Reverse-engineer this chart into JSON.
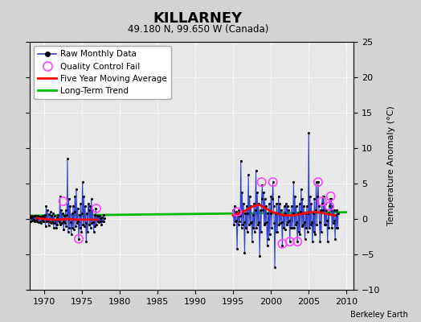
{
  "title": "KILLARNEY",
  "subtitle": "49.180 N, 99.650 W (Canada)",
  "ylabel": "Temperature Anomaly (°C)",
  "credit": "Berkeley Earth",
  "xlim": [
    1968,
    2011
  ],
  "ylim": [
    -10,
    25
  ],
  "yticks": [
    -10,
    -5,
    0,
    5,
    10,
    15,
    20,
    25
  ],
  "xticks": [
    1970,
    1975,
    1980,
    1985,
    1990,
    1995,
    2000,
    2005,
    2010
  ],
  "bg_color": "#d3d3d3",
  "plot_bg_color": "#e8e8e8",
  "grid_color": "#ffffff",
  "raw_color": "#3344cc",
  "raw_dot_color": "#000000",
  "ma_color": "#ff0000",
  "trend_color": "#00bb00",
  "qc_color": "#ff44ff",
  "raw_monthly_data": [
    [
      1968.04,
      0.2
    ],
    [
      1968.12,
      -0.3
    ],
    [
      1968.21,
      0.5
    ],
    [
      1968.29,
      0.1
    ],
    [
      1968.38,
      -0.2
    ],
    [
      1968.46,
      0.3
    ],
    [
      1968.54,
      -0.1
    ],
    [
      1968.63,
      0.4
    ],
    [
      1968.71,
      -0.3
    ],
    [
      1968.79,
      0.5
    ],
    [
      1968.88,
      -0.2
    ],
    [
      1968.96,
      0.1
    ],
    [
      1969.04,
      -0.3
    ],
    [
      1969.12,
      0.4
    ],
    [
      1969.21,
      -0.5
    ],
    [
      1969.29,
      0.2
    ],
    [
      1969.38,
      -0.4
    ],
    [
      1969.46,
      0.3
    ],
    [
      1969.54,
      -0.6
    ],
    [
      1969.63,
      0.2
    ],
    [
      1969.71,
      -0.2
    ],
    [
      1969.79,
      0.5
    ],
    [
      1969.88,
      -0.3
    ],
    [
      1969.96,
      0.2
    ],
    [
      1970.04,
      0.6
    ],
    [
      1970.12,
      -1.0
    ],
    [
      1970.21,
      1.8
    ],
    [
      1970.29,
      -0.3
    ],
    [
      1970.38,
      1.2
    ],
    [
      1970.46,
      -0.2
    ],
    [
      1970.54,
      -0.9
    ],
    [
      1970.63,
      0.7
    ],
    [
      1970.71,
      -0.5
    ],
    [
      1970.79,
      1.0
    ],
    [
      1970.88,
      -0.6
    ],
    [
      1970.96,
      0.4
    ],
    [
      1971.04,
      -0.4
    ],
    [
      1971.12,
      0.8
    ],
    [
      1971.21,
      -1.2
    ],
    [
      1971.29,
      0.4
    ],
    [
      1971.38,
      -0.6
    ],
    [
      1971.46,
      -0.1
    ],
    [
      1971.54,
      -1.3
    ],
    [
      1971.63,
      0.2
    ],
    [
      1971.71,
      -0.8
    ],
    [
      1971.79,
      0.6
    ],
    [
      1971.88,
      -0.2
    ],
    [
      1971.96,
      -0.4
    ],
    [
      1972.04,
      3.2
    ],
    [
      1972.12,
      -0.8
    ],
    [
      1972.21,
      1.3
    ],
    [
      1972.29,
      -0.6
    ],
    [
      1972.38,
      0.8
    ],
    [
      1972.46,
      -0.3
    ],
    [
      1972.54,
      -1.5
    ],
    [
      1972.63,
      0.4
    ],
    [
      1972.71,
      -0.6
    ],
    [
      1972.79,
      1.2
    ],
    [
      1972.88,
      -1.0
    ],
    [
      1972.96,
      0.6
    ],
    [
      1973.04,
      8.5
    ],
    [
      1973.12,
      -1.8
    ],
    [
      1973.21,
      2.8
    ],
    [
      1973.29,
      -1.2
    ],
    [
      1973.38,
      1.8
    ],
    [
      1973.46,
      -0.4
    ],
    [
      1973.54,
      -2.2
    ],
    [
      1973.63,
      0.8
    ],
    [
      1973.71,
      -1.2
    ],
    [
      1973.79,
      1.8
    ],
    [
      1973.88,
      -1.5
    ],
    [
      1973.96,
      1.0
    ],
    [
      1974.04,
      3.2
    ],
    [
      1974.12,
      -1.0
    ],
    [
      1974.21,
      4.2
    ],
    [
      1974.29,
      -0.6
    ],
    [
      1974.38,
      1.5
    ],
    [
      1974.46,
      -0.3
    ],
    [
      1974.54,
      -2.8
    ],
    [
      1974.63,
      0.6
    ],
    [
      1974.71,
      -1.3
    ],
    [
      1974.79,
      2.2
    ],
    [
      1974.88,
      -1.8
    ],
    [
      1974.96,
      0.8
    ],
    [
      1975.04,
      5.2
    ],
    [
      1975.12,
      -0.8
    ],
    [
      1975.21,
      3.2
    ],
    [
      1975.29,
      -1.0
    ],
    [
      1975.38,
      1.8
    ],
    [
      1975.46,
      -0.6
    ],
    [
      1975.54,
      -3.2
    ],
    [
      1975.63,
      0.8
    ],
    [
      1975.71,
      -1.8
    ],
    [
      1975.79,
      2.2
    ],
    [
      1975.88,
      1.3
    ],
    [
      1975.96,
      -0.8
    ],
    [
      1976.04,
      1.8
    ],
    [
      1976.12,
      -1.2
    ],
    [
      1976.21,
      2.8
    ],
    [
      1976.29,
      -0.6
    ],
    [
      1976.38,
      1.3
    ],
    [
      1976.46,
      -0.4
    ],
    [
      1976.54,
      -1.8
    ],
    [
      1976.63,
      0.6
    ],
    [
      1976.71,
      -1.0
    ],
    [
      1976.79,
      1.5
    ],
    [
      1976.88,
      -0.8
    ],
    [
      1976.96,
      0.4
    ],
    [
      1977.04,
      -0.3
    ],
    [
      1977.12,
      0.4
    ],
    [
      1977.21,
      -0.4
    ],
    [
      1977.29,
      0.4
    ],
    [
      1977.38,
      -0.3
    ],
    [
      1977.46,
      0.1
    ],
    [
      1977.54,
      -0.8
    ],
    [
      1977.63,
      0.2
    ],
    [
      1977.71,
      -0.3
    ],
    [
      1977.79,
      0.6
    ],
    [
      1977.88,
      -0.3
    ],
    [
      1977.96,
      0.1
    ],
    [
      1995.04,
      1.2
    ],
    [
      1995.12,
      -0.8
    ],
    [
      1995.21,
      1.8
    ],
    [
      1995.29,
      -0.3
    ],
    [
      1995.38,
      1.0
    ],
    [
      1995.46,
      -0.2
    ],
    [
      1995.54,
      -4.2
    ],
    [
      1995.63,
      0.4
    ],
    [
      1995.71,
      -0.8
    ],
    [
      1995.79,
      1.2
    ],
    [
      1995.88,
      -0.3
    ],
    [
      1995.96,
      0.4
    ],
    [
      1996.04,
      8.2
    ],
    [
      1996.12,
      -1.2
    ],
    [
      1996.21,
      3.8
    ],
    [
      1996.29,
      -0.8
    ],
    [
      1996.38,
      2.2
    ],
    [
      1996.46,
      -0.4
    ],
    [
      1996.54,
      -4.8
    ],
    [
      1996.63,
      0.8
    ],
    [
      1996.71,
      -1.2
    ],
    [
      1996.79,
      1.8
    ],
    [
      1996.88,
      -1.8
    ],
    [
      1996.96,
      0.8
    ],
    [
      1997.04,
      6.2
    ],
    [
      1997.12,
      -0.8
    ],
    [
      1997.21,
      3.2
    ],
    [
      1997.29,
      -0.6
    ],
    [
      1997.38,
      1.8
    ],
    [
      1997.46,
      -0.4
    ],
    [
      1997.54,
      -3.2
    ],
    [
      1997.63,
      0.6
    ],
    [
      1997.71,
      -1.2
    ],
    [
      1997.79,
      2.2
    ],
    [
      1997.88,
      -1.8
    ],
    [
      1997.96,
      1.2
    ],
    [
      1998.04,
      6.8
    ],
    [
      1998.12,
      -1.2
    ],
    [
      1998.21,
      3.8
    ],
    [
      1998.29,
      -0.8
    ],
    [
      1998.38,
      2.2
    ],
    [
      1998.46,
      -0.4
    ],
    [
      1998.54,
      -5.2
    ],
    [
      1998.63,
      1.2
    ],
    [
      1998.71,
      -1.8
    ],
    [
      1998.79,
      2.8
    ],
    [
      1998.88,
      4.8
    ],
    [
      1998.96,
      1.2
    ],
    [
      1999.04,
      3.8
    ],
    [
      1999.12,
      -0.8
    ],
    [
      1999.21,
      2.8
    ],
    [
      1999.29,
      -0.6
    ],
    [
      1999.38,
      1.8
    ],
    [
      1999.46,
      -0.4
    ],
    [
      1999.54,
      -3.8
    ],
    [
      1999.63,
      0.8
    ],
    [
      1999.71,
      -2.8
    ],
    [
      1999.79,
      2.2
    ],
    [
      1999.88,
      -2.2
    ],
    [
      1999.96,
      0.8
    ],
    [
      2000.04,
      3.2
    ],
    [
      2000.12,
      -1.2
    ],
    [
      2000.21,
      2.8
    ],
    [
      2000.29,
      5.2
    ],
    [
      2000.38,
      1.8
    ],
    [
      2000.46,
      -0.6
    ],
    [
      2000.54,
      -6.8
    ],
    [
      2000.63,
      0.8
    ],
    [
      2000.71,
      -1.8
    ],
    [
      2000.79,
      2.2
    ],
    [
      2000.88,
      -1.8
    ],
    [
      2000.96,
      0.8
    ],
    [
      2001.04,
      3.2
    ],
    [
      2001.12,
      -0.8
    ],
    [
      2001.21,
      2.2
    ],
    [
      2001.29,
      -0.6
    ],
    [
      2001.38,
      1.2
    ],
    [
      2001.46,
      -0.4
    ],
    [
      2001.54,
      -3.8
    ],
    [
      2001.63,
      0.6
    ],
    [
      2001.71,
      -1.2
    ],
    [
      2001.79,
      1.8
    ],
    [
      2001.88,
      -1.5
    ],
    [
      2001.96,
      0.8
    ],
    [
      2002.04,
      2.2
    ],
    [
      2002.12,
      -0.8
    ],
    [
      2002.21,
      1.8
    ],
    [
      2002.29,
      -0.4
    ],
    [
      2002.38,
      1.2
    ],
    [
      2002.46,
      -0.2
    ],
    [
      2002.54,
      -3.2
    ],
    [
      2002.63,
      0.6
    ],
    [
      2002.71,
      -1.2
    ],
    [
      2002.79,
      1.8
    ],
    [
      2002.88,
      -1.2
    ],
    [
      2002.96,
      0.8
    ],
    [
      2003.04,
      5.2
    ],
    [
      2003.12,
      -1.2
    ],
    [
      2003.21,
      3.2
    ],
    [
      2003.29,
      -0.8
    ],
    [
      2003.38,
      1.8
    ],
    [
      2003.46,
      -0.4
    ],
    [
      2003.54,
      -3.2
    ],
    [
      2003.63,
      0.8
    ],
    [
      2003.71,
      -1.8
    ],
    [
      2003.79,
      2.2
    ],
    [
      2003.88,
      -2.2
    ],
    [
      2003.96,
      1.0
    ],
    [
      2004.04,
      4.2
    ],
    [
      2004.12,
      -1.0
    ],
    [
      2004.21,
      2.8
    ],
    [
      2004.29,
      -0.8
    ],
    [
      2004.38,
      1.8
    ],
    [
      2004.46,
      -0.4
    ],
    [
      2004.54,
      -2.8
    ],
    [
      2004.63,
      0.8
    ],
    [
      2004.71,
      -1.2
    ],
    [
      2004.79,
      1.8
    ],
    [
      2004.88,
      -1.8
    ],
    [
      2004.96,
      0.8
    ],
    [
      2005.04,
      12.2
    ],
    [
      2005.12,
      -1.2
    ],
    [
      2005.21,
      3.2
    ],
    [
      2005.29,
      -0.8
    ],
    [
      2005.38,
      2.2
    ],
    [
      2005.46,
      -0.4
    ],
    [
      2005.54,
      -3.2
    ],
    [
      2005.63,
      0.8
    ],
    [
      2005.71,
      -1.8
    ],
    [
      2005.79,
      2.8
    ],
    [
      2005.88,
      -2.2
    ],
    [
      2005.96,
      1.2
    ],
    [
      2006.04,
      5.2
    ],
    [
      2006.12,
      -0.8
    ],
    [
      2006.21,
      3.2
    ],
    [
      2006.29,
      5.2
    ],
    [
      2006.38,
      1.8
    ],
    [
      2006.46,
      -0.4
    ],
    [
      2006.54,
      -3.2
    ],
    [
      2006.63,
      1.2
    ],
    [
      2006.71,
      -1.8
    ],
    [
      2006.79,
      2.2
    ],
    [
      2006.88,
      3.2
    ],
    [
      2006.96,
      1.2
    ],
    [
      2007.04,
      3.2
    ],
    [
      2007.12,
      -0.8
    ],
    [
      2007.21,
      2.2
    ],
    [
      2007.29,
      -0.8
    ],
    [
      2007.38,
      1.2
    ],
    [
      2007.46,
      -0.2
    ],
    [
      2007.54,
      -3.2
    ],
    [
      2007.63,
      0.8
    ],
    [
      2007.71,
      -1.2
    ],
    [
      2007.79,
      1.8
    ],
    [
      2007.88,
      2.8
    ],
    [
      2007.96,
      1.2
    ],
    [
      2008.04,
      2.8
    ],
    [
      2008.12,
      -1.2
    ],
    [
      2008.21,
      1.8
    ],
    [
      2008.29,
      -0.6
    ],
    [
      2008.38,
      1.2
    ],
    [
      2008.46,
      -0.2
    ],
    [
      2008.54,
      -2.8
    ],
    [
      2008.63,
      0.6
    ],
    [
      2008.71,
      -1.2
    ],
    [
      2008.79,
      1.2
    ],
    [
      2008.88,
      -1.2
    ],
    [
      2008.96,
      0.8
    ]
  ],
  "qc_fail_points": [
    [
      1972.46,
      2.5
    ],
    [
      1974.54,
      -2.8
    ],
    [
      1976.88,
      1.5
    ],
    [
      1995.54,
      1.0
    ],
    [
      1998.79,
      5.2
    ],
    [
      2000.29,
      5.2
    ],
    [
      2001.54,
      -3.5
    ],
    [
      2002.54,
      -3.2
    ],
    [
      2003.54,
      -3.2
    ],
    [
      2006.29,
      5.2
    ],
    [
      2006.79,
      2.5
    ],
    [
      2007.79,
      1.8
    ],
    [
      2007.96,
      3.2
    ]
  ],
  "moving_avg_seg1": [
    [
      1969.0,
      0.1
    ],
    [
      1970.0,
      0.0
    ],
    [
      1971.0,
      -0.1
    ],
    [
      1972.0,
      -0.1
    ],
    [
      1973.0,
      0.0
    ],
    [
      1974.0,
      -0.1
    ],
    [
      1975.0,
      -0.1
    ],
    [
      1976.0,
      -0.1
    ],
    [
      1977.0,
      -0.1
    ]
  ],
  "moving_avg_seg2": [
    [
      1995.0,
      0.5
    ],
    [
      1995.5,
      0.7
    ],
    [
      1996.0,
      0.9
    ],
    [
      1996.5,
      1.1
    ],
    [
      1997.0,
      1.4
    ],
    [
      1997.5,
      1.7
    ],
    [
      1998.0,
      1.9
    ],
    [
      1998.5,
      2.0
    ],
    [
      1999.0,
      1.7
    ],
    [
      1999.5,
      1.4
    ],
    [
      2000.0,
      1.1
    ],
    [
      2000.5,
      0.9
    ],
    [
      2001.0,
      0.7
    ],
    [
      2001.5,
      0.6
    ],
    [
      2002.0,
      0.5
    ],
    [
      2002.5,
      0.5
    ],
    [
      2003.0,
      0.5
    ],
    [
      2003.5,
      0.6
    ],
    [
      2004.0,
      0.7
    ],
    [
      2004.5,
      0.8
    ],
    [
      2005.0,
      0.9
    ],
    [
      2005.5,
      1.0
    ],
    [
      2006.0,
      1.0
    ],
    [
      2006.5,
      0.9
    ],
    [
      2007.0,
      0.8
    ],
    [
      2007.5,
      0.7
    ],
    [
      2008.0,
      0.6
    ],
    [
      2008.5,
      0.5
    ]
  ],
  "trend_x": [
    1968,
    2010
  ],
  "trend_y": [
    0.45,
    0.95
  ]
}
